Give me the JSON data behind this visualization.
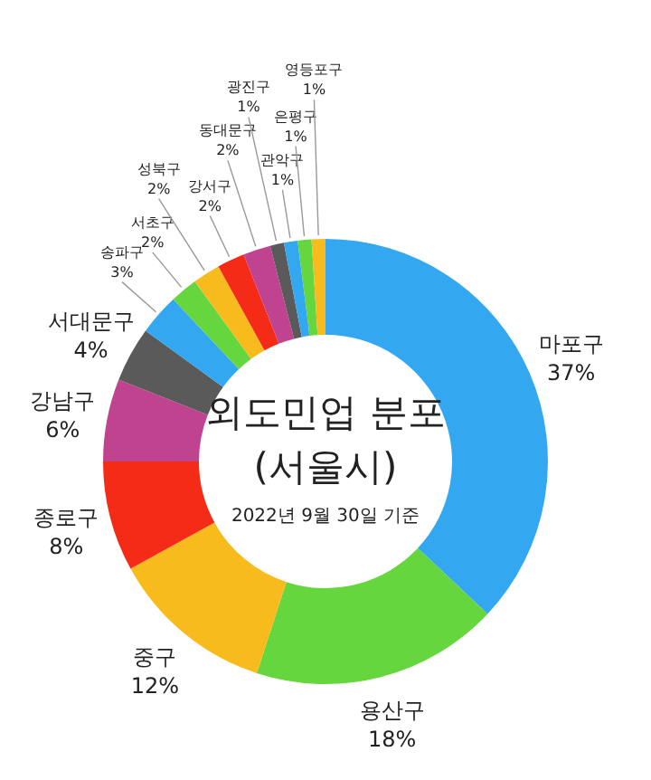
{
  "chart_data": {
    "type": "donut",
    "title": "외도민업 분포",
    "subtitle": "(서울시)",
    "annotations": [
      "2022년 9월 30일 기준"
    ],
    "categories": [
      "마포구",
      "용산구",
      "중구",
      "종로구",
      "강남구",
      "서대문구",
      "송파구",
      "서초구",
      "성북구",
      "강서구",
      "동대문구",
      "광진구",
      "관악구",
      "은평구",
      "영등포구"
    ],
    "values": [
      37,
      18,
      12,
      8,
      6,
      4,
      3,
      2,
      2,
      2,
      2,
      1,
      1,
      1,
      1
    ],
    "colors": [
      "#33a8f0",
      "#66d63e",
      "#f8bb1e",
      "#f42c17",
      "#c0438f",
      "#5a5a5a",
      "#33a8f0",
      "#66d63e",
      "#f8bb1e",
      "#f42c17",
      "#c0438f",
      "#5a5a5a",
      "#33a8f0",
      "#66d63e",
      "#f8bb1e"
    ],
    "value_labels": [
      "37%",
      "18%",
      "12%",
      "8%",
      "6%",
      "4%",
      "3%",
      "2%",
      "2%",
      "2%",
      "2%",
      "1%",
      "1%",
      "1%",
      "1%"
    ]
  }
}
